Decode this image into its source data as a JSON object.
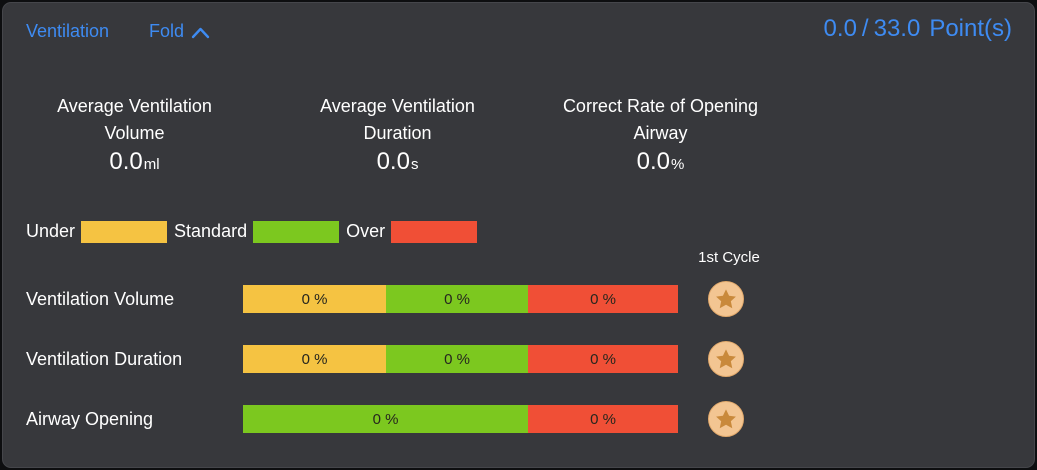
{
  "header": {
    "title": "Ventilation",
    "fold_label": "Fold",
    "score": {
      "current": "0.0",
      "separator": "/",
      "total": "33.0",
      "unit": "Point(s)"
    }
  },
  "stats": [
    {
      "label_line1": "Average Ventilation",
      "label_line2": "Volume",
      "value": "0.0",
      "unit": "ml"
    },
    {
      "label_line1": "Average Ventilation",
      "label_line2": "Duration",
      "value": "0.0",
      "unit": "s"
    },
    {
      "label_line1": "Correct Rate of Opening",
      "label_line2": "Airway",
      "value": "0.0",
      "unit": "%"
    }
  ],
  "legend": [
    {
      "label": "Under",
      "color": "#f5c342"
    },
    {
      "label": "Standard",
      "color": "#7cc81f"
    },
    {
      "label": "Over",
      "color": "#f04f36"
    }
  ],
  "cycle_header": "1st Cycle",
  "rows": [
    {
      "label": "Ventilation Volume",
      "segments": [
        {
          "type": "under",
          "value": "0 %",
          "color": "#f5c342",
          "flex": 143
        },
        {
          "type": "standard",
          "value": "0 %",
          "color": "#7cc81f",
          "flex": 142
        },
        {
          "type": "over",
          "value": "0 %",
          "color": "#f04f36",
          "flex": 150
        }
      ]
    },
    {
      "label": "Ventilation Duration",
      "segments": [
        {
          "type": "under",
          "value": "0 %",
          "color": "#f5c342",
          "flex": 143
        },
        {
          "type": "standard",
          "value": "0 %",
          "color": "#7cc81f",
          "flex": 142
        },
        {
          "type": "over",
          "value": "0 %",
          "color": "#f04f36",
          "flex": 150
        }
      ]
    },
    {
      "label": "Airway Opening",
      "segments": [
        {
          "type": "standard",
          "value": "0 %",
          "color": "#7cc81f",
          "flex": 285
        },
        {
          "type": "over",
          "value": "0 %",
          "color": "#f04f36",
          "flex": 150
        }
      ]
    }
  ],
  "icons": {
    "fold": "chevron-up-icon",
    "cycle_badge": "star-icon"
  },
  "colors": {
    "panel_background": "#37383c",
    "outer_border": "#0d0e10",
    "accent_blue": "#3e8bf2",
    "text_primary": "#ffffff",
    "bar_text": "#26261e",
    "under_yellow": "#f5c342",
    "standard_green": "#7cc81f",
    "over_red": "#f04f36",
    "star_badge_fill": "#f3c592",
    "star_glyph": "#c9893b"
  }
}
